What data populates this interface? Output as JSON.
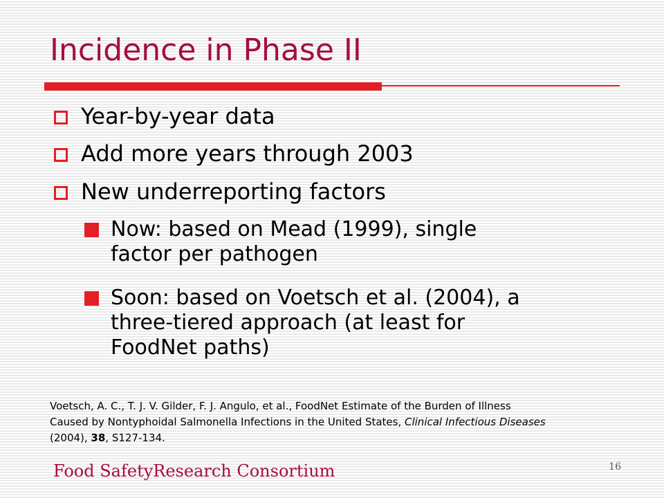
{
  "slide": {
    "title": "Incidence in Phase II",
    "bullets": [
      {
        "text": "Year-by-year data"
      },
      {
        "text": "Add more years through 2003"
      },
      {
        "text": "New underreporting factors"
      }
    ],
    "sub_bullets": [
      {
        "lines": [
          "Now: based on Mead (1999), single",
          "factor per pathogen"
        ]
      },
      {
        "lines": [
          "Soon: based on Voetsch et al. (2004), a",
          "three-tiered approach (at least for",
          "FoodNet paths)"
        ]
      }
    ],
    "reference": {
      "authors_title": "Voetsch, A. C., T. J. V. Gilder, F. J. Angulo, et al., FoodNet Estimate of the Burden of Illness",
      "title_cont": "Caused by Nontyphoidal Salmonella Infections in the United States, ",
      "journal": "Clinical Infectious Diseases",
      "year": "(2004), ",
      "volume": "38",
      "pages": ", S127-134."
    },
    "footer": {
      "organization": "Food SafetyResearch Consortium",
      "page_number": "16"
    }
  },
  "colors": {
    "title": "#a50e3c",
    "accent": "#e41e26",
    "text": "#000000"
  },
  "icons": {
    "bullet": "hollow-square-icon",
    "sub_bullet": "filled-square-icon"
  }
}
